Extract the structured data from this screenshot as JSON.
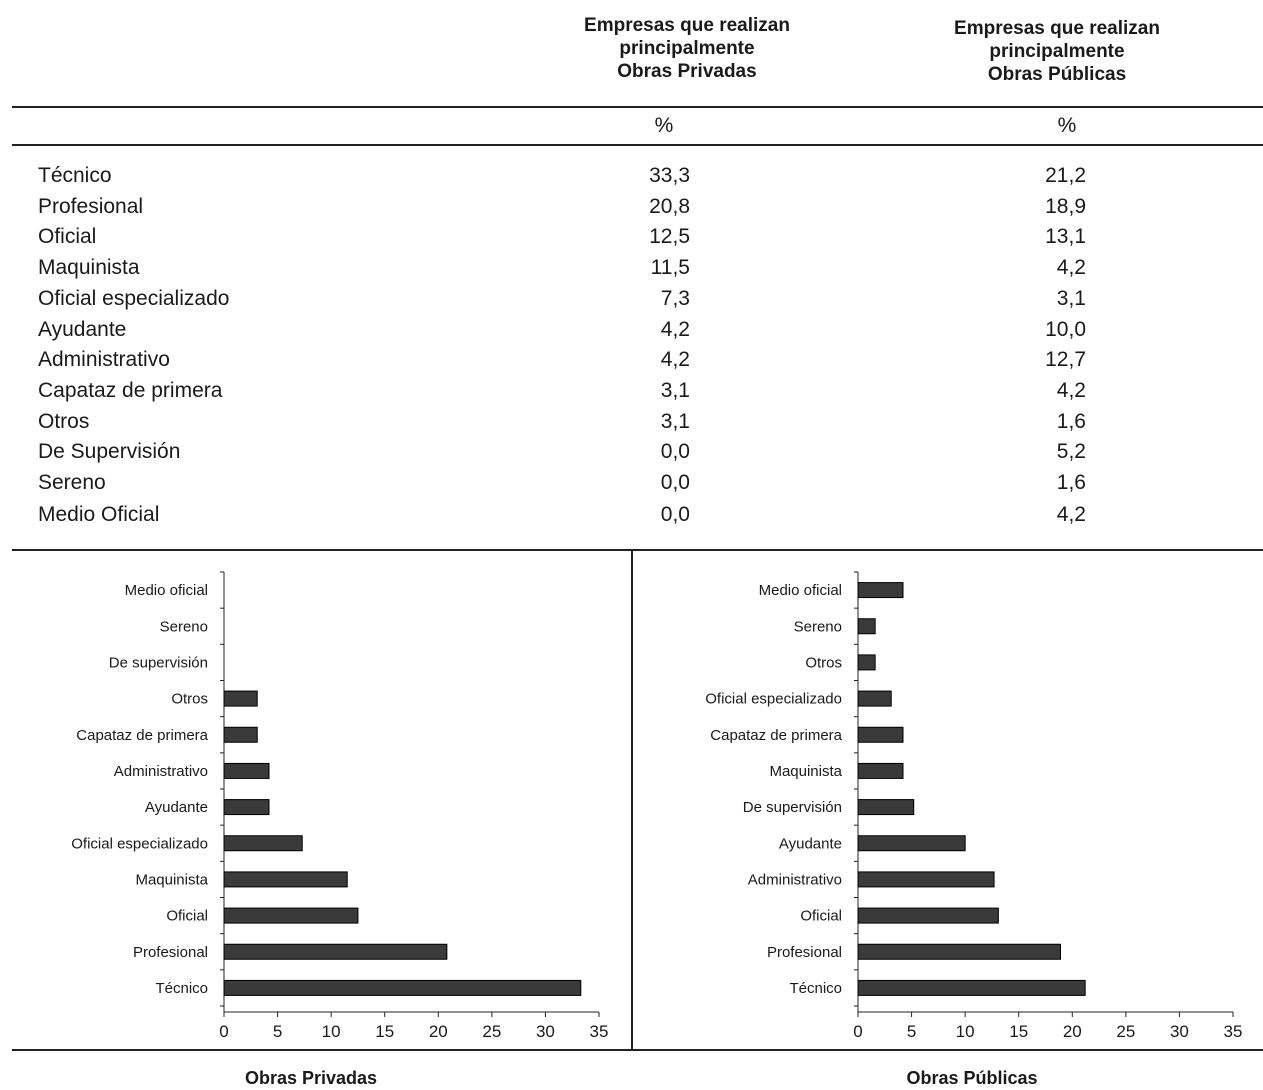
{
  "table": {
    "col1_header": [
      "Empresas que realizan",
      "principalmente",
      "Obras Privadas"
    ],
    "col2_header": [
      "Empresas que realizan",
      "principalmente",
      "Obras Públicas"
    ],
    "unit1": "%",
    "unit2": "%",
    "rows": [
      {
        "label": "Técnico",
        "v1": "33,3",
        "v2": "21,2"
      },
      {
        "label": "Profesional",
        "v1": "20,8",
        "v2": "18,9"
      },
      {
        "label": "Oficial",
        "v1": "12,5",
        "v2": "13,1"
      },
      {
        "label": "Maquinista",
        "v1": "11,5",
        "v2": "4,2"
      },
      {
        "label": "Oficial especializado",
        "v1": "7,3",
        "v2": "3,1"
      },
      {
        "label": "Ayudante",
        "v1": "4,2",
        "v2": "10,0"
      },
      {
        "label": "Administrativo",
        "v1": "4,2",
        "v2": "12,7"
      },
      {
        "label": "Capataz de primera",
        "v1": "3,1",
        "v2": "4,2"
      },
      {
        "label": "Otros",
        "v1": "3,1",
        "v2": "1,6"
      },
      {
        "label": "De Supervisión",
        "v1": "0,0",
        "v2": "5,2"
      },
      {
        "label": "Sereno",
        "v1": "0,0",
        "v2": "1,6"
      },
      {
        "label": "Medio Oficial",
        "v1": "0,0",
        "v2": "4,2"
      }
    ]
  },
  "chart_data": [
    {
      "type": "bar",
      "orientation": "horizontal",
      "title": "Obras Privadas",
      "categories": [
        "Técnico",
        "Profesional",
        "Oficial",
        "Maquinista",
        "Oficial especializado",
        "Ayudante",
        "Administrativo",
        "Capataz de primera",
        "Otros",
        "De supervisión",
        "Sereno",
        "Medio oficial"
      ],
      "values": [
        33.3,
        20.8,
        12.5,
        11.5,
        7.3,
        4.2,
        4.2,
        3.1,
        3.1,
        0.0,
        0.0,
        0.0
      ],
      "xlim": [
        0,
        35
      ],
      "xticks": [
        "0",
        "5",
        "10",
        "15",
        "20",
        "25",
        "30",
        "35"
      ],
      "bar_color": "#3a3a3a"
    },
    {
      "type": "bar",
      "orientation": "horizontal",
      "title": "Obras Públicas",
      "categories": [
        "Técnico",
        "Profesional",
        "Oficial",
        "Administrativo",
        "Ayudante",
        "De supervisión",
        "Maquinista",
        "Capataz de primera",
        "Oficial especializado",
        "Otros",
        "Sereno",
        "Medio oficial"
      ],
      "values": [
        21.2,
        18.9,
        13.1,
        12.7,
        10.0,
        5.2,
        4.2,
        4.2,
        3.1,
        1.6,
        1.6,
        4.2
      ],
      "xlim": [
        0,
        35
      ],
      "xticks": [
        "0",
        "5",
        "10",
        "15",
        "20",
        "25",
        "30",
        "35"
      ],
      "bar_color": "#3a3a3a"
    }
  ]
}
